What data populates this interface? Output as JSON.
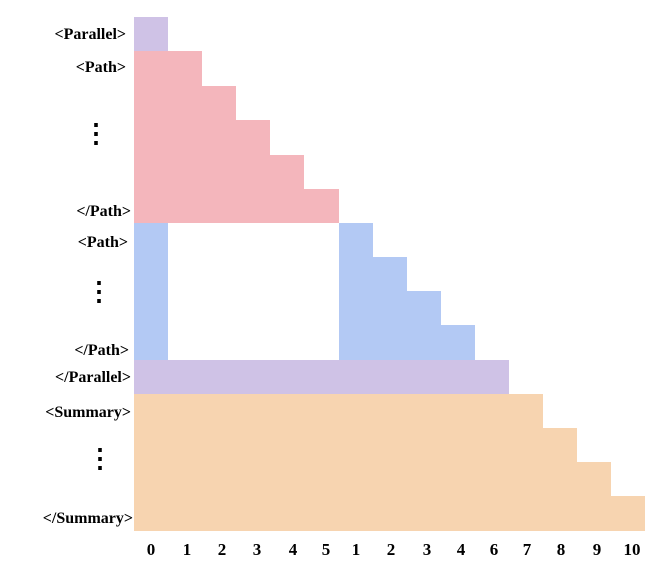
{
  "colors": {
    "parallel": "#cfc2e6",
    "path1": "#f4b6bc",
    "path2": "#b3c9f4",
    "summary": "#f7d4b0"
  },
  "row_labels": {
    "parallel_open": "<Parallel>",
    "path1_open": "<Path>",
    "path1_ellipsis": "⋮",
    "path1_close": "</Path>",
    "path2_open": "<Path>",
    "path2_ellipsis": "⋮",
    "path2_close": "</Path>",
    "parallel_close": "</Parallel>",
    "summary_open": "<Summary>",
    "summary_ellipsis": "⋮",
    "summary_close": "</Summary>"
  },
  "x_ticks": [
    "0",
    "1",
    "2",
    "3",
    "4",
    "5",
    "1",
    "2",
    "3",
    "4",
    "6",
    "7",
    "8",
    "9",
    "10"
  ]
}
